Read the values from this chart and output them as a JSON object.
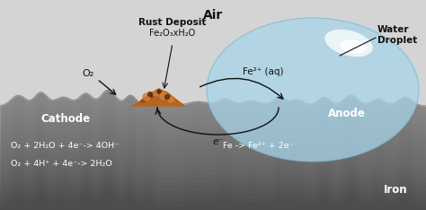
{
  "bg_top_color": "#d4d4d4",
  "iron_dark": "#4a4a4a",
  "iron_mid": "#6a6a6a",
  "iron_light": "#909090",
  "water_color": "#a8d4e8",
  "water_edge": "#78b8d8",
  "rust_dark": "#8B3a10",
  "rust_mid": "#b5651d",
  "rust_light": "#cd853f",
  "arrow_color": "#111111",
  "text_dark": "#111111",
  "text_white": "#ffffff",
  "label_air": "Air",
  "label_water_droplet": "Water\nDroplet",
  "label_rust_deposit": "Rust Deposit",
  "label_rust_formula": "Fe₂O₃xH₂O",
  "label_o2": "O₂",
  "label_fe2plus": "Fe²⁺ (aq)",
  "label_eminus": "e⁻",
  "label_cathode": "Cathode",
  "label_anode": "Anode",
  "label_iron": "Iron",
  "eq1": "O₂ + 2H₂O + 4e⁻-> 4OH⁻",
  "eq2": "O₂ + 4H⁺ + 4e⁻-> 2H₂O",
  "eq3": "Fe -> Fe²⁺ + 2e⁻",
  "figsize": [
    4.74,
    2.34
  ],
  "dpi": 100
}
